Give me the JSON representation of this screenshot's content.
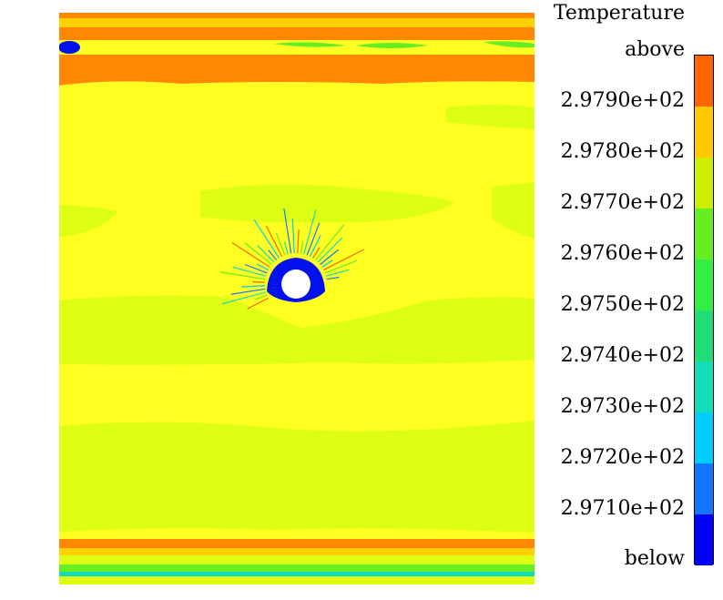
{
  "chart_data": {
    "type": "heatmap",
    "title": "",
    "xlabel": "",
    "ylabel": "",
    "legend": {
      "title": "Temperature",
      "top_label": "above",
      "bottom_label": "below",
      "tick_labels": [
        "2.9790e+02",
        "2.9780e+02",
        "2.9770e+02",
        "2.9760e+02",
        "2.9750e+02",
        "2.9740e+02",
        "2.9730e+02",
        "2.9720e+02",
        "2.9710e+02"
      ],
      "placement": "right"
    },
    "levels": [
      {
        "range": "above 2.9790e+02",
        "color": "#ff6600"
      },
      {
        "range": "2.9780e+02 - 2.9790e+02",
        "color": "#ffc800"
      },
      {
        "range": "2.9770e+02 - 2.9780e+02",
        "color": "#ccee00"
      },
      {
        "range": "2.9760e+02 - 2.9770e+02",
        "color": "#66ee22"
      },
      {
        "range": "2.9750e+02 - 2.9760e+02",
        "color": "#33ee44"
      },
      {
        "range": "2.9740e+02 - 2.9750e+02",
        "color": "#22dd77"
      },
      {
        "range": "2.9730e+02 - 2.9740e+02",
        "color": "#11ddbb"
      },
      {
        "range": "2.9720e+02 - 2.9730e+02",
        "color": "#00ccff"
      },
      {
        "range": "2.9710e+02 - 2.9720e+02",
        "color": "#1177ff"
      },
      {
        "range": "below 2.9710e+02",
        "color": "#0000ff"
      }
    ],
    "field_colors": {
      "background": "#ffff22",
      "low_band": "#ddff11",
      "hot_band": "#ff8800",
      "warm_band": "#ffd000",
      "cold_core": "#0011ee",
      "obstacle": "#ffffff"
    }
  }
}
